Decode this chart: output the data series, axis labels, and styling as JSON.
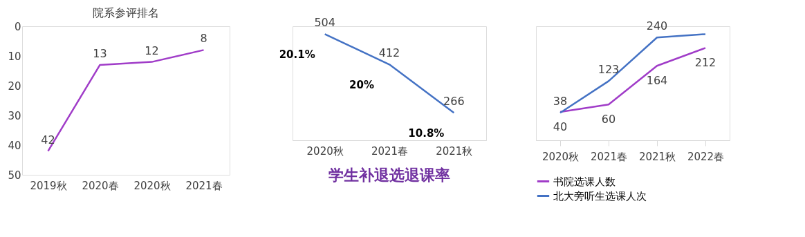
{
  "chart_data": [
    {
      "type": "line",
      "title": "院系参评排名",
      "categories": [
        "2019秋",
        "2020春",
        "2020秋",
        "2021春"
      ],
      "series": [
        {
          "color": "#a03cc8",
          "values": [
            42,
            13,
            12,
            8
          ]
        }
      ],
      "ylim": [
        50,
        0
      ],
      "yticks": [
        0,
        10,
        20,
        30,
        40,
        50
      ],
      "data_labels": true,
      "grid": false,
      "legend": false
    },
    {
      "type": "line",
      "title": "学生补退选退课率",
      "categories": [
        "2020秋",
        "2021春",
        "2021秋"
      ],
      "series": [
        {
          "color": "#4472c4",
          "values": [
            504,
            412,
            266
          ]
        }
      ],
      "data_labels": true,
      "tick_labels": "x",
      "legend": false,
      "annotations": [
        "20.1%",
        "20%",
        "10.8%"
      ]
    },
    {
      "type": "line",
      "categories": [
        "2020秋",
        "2021春",
        "2021秋",
        "2022春"
      ],
      "series": [
        {
          "name": "书院选课人数",
          "color": "#a03cc8",
          "values": [
            40,
            60,
            164,
            212
          ],
          "value_labels": [
            "40",
            "60",
            "164",
            "212"
          ]
        },
        {
          "name": "北大旁听生选课人次",
          "color": "#4472c4",
          "values": [
            38,
            123,
            240,
            249
          ],
          "value_labels": [
            "38",
            "123",
            "240",
            null
          ]
        }
      ],
      "tick_labels": "x",
      "legend": "bottom"
    }
  ]
}
